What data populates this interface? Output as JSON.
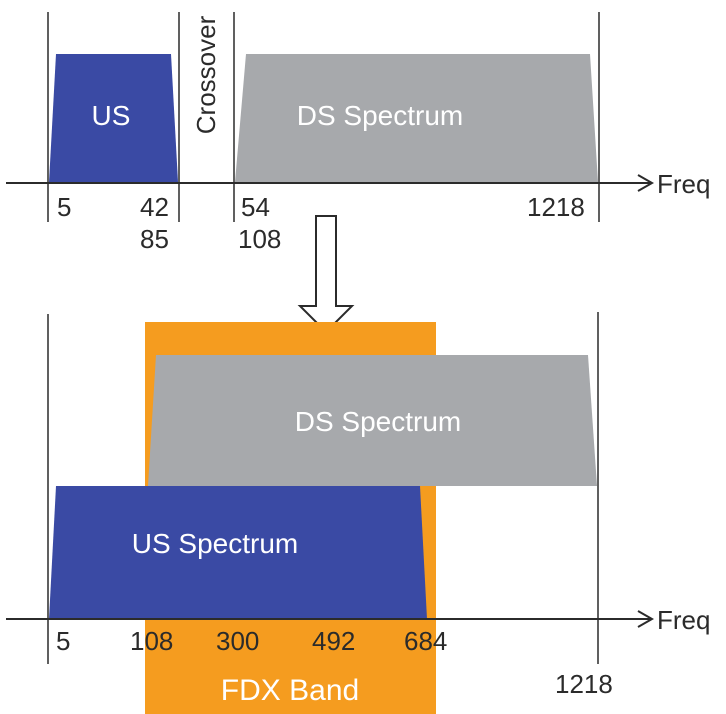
{
  "top": {
    "us_label": "US",
    "crossover_label": "Crossover",
    "ds_label": "DS Spectrum",
    "axis_label": "Freq",
    "ticks": {
      "t5": "5",
      "t42": "42",
      "t85": "85",
      "t54": "54",
      "t108": "108",
      "t1218": "1218"
    }
  },
  "bottom": {
    "ds_label": "DS Spectrum",
    "us_label": "US Spectrum",
    "fdx_label": "FDX Band",
    "axis_label": "Freq",
    "ticks": {
      "t5": "5",
      "t108": "108",
      "t300": "300",
      "t492": "492",
      "t684": "684",
      "t1218": "1218"
    }
  },
  "colors": {
    "us": "#3a4aa4",
    "ds": "#a7a9ac",
    "fdx": "#f59c1f",
    "line": "#2b2b2b"
  }
}
